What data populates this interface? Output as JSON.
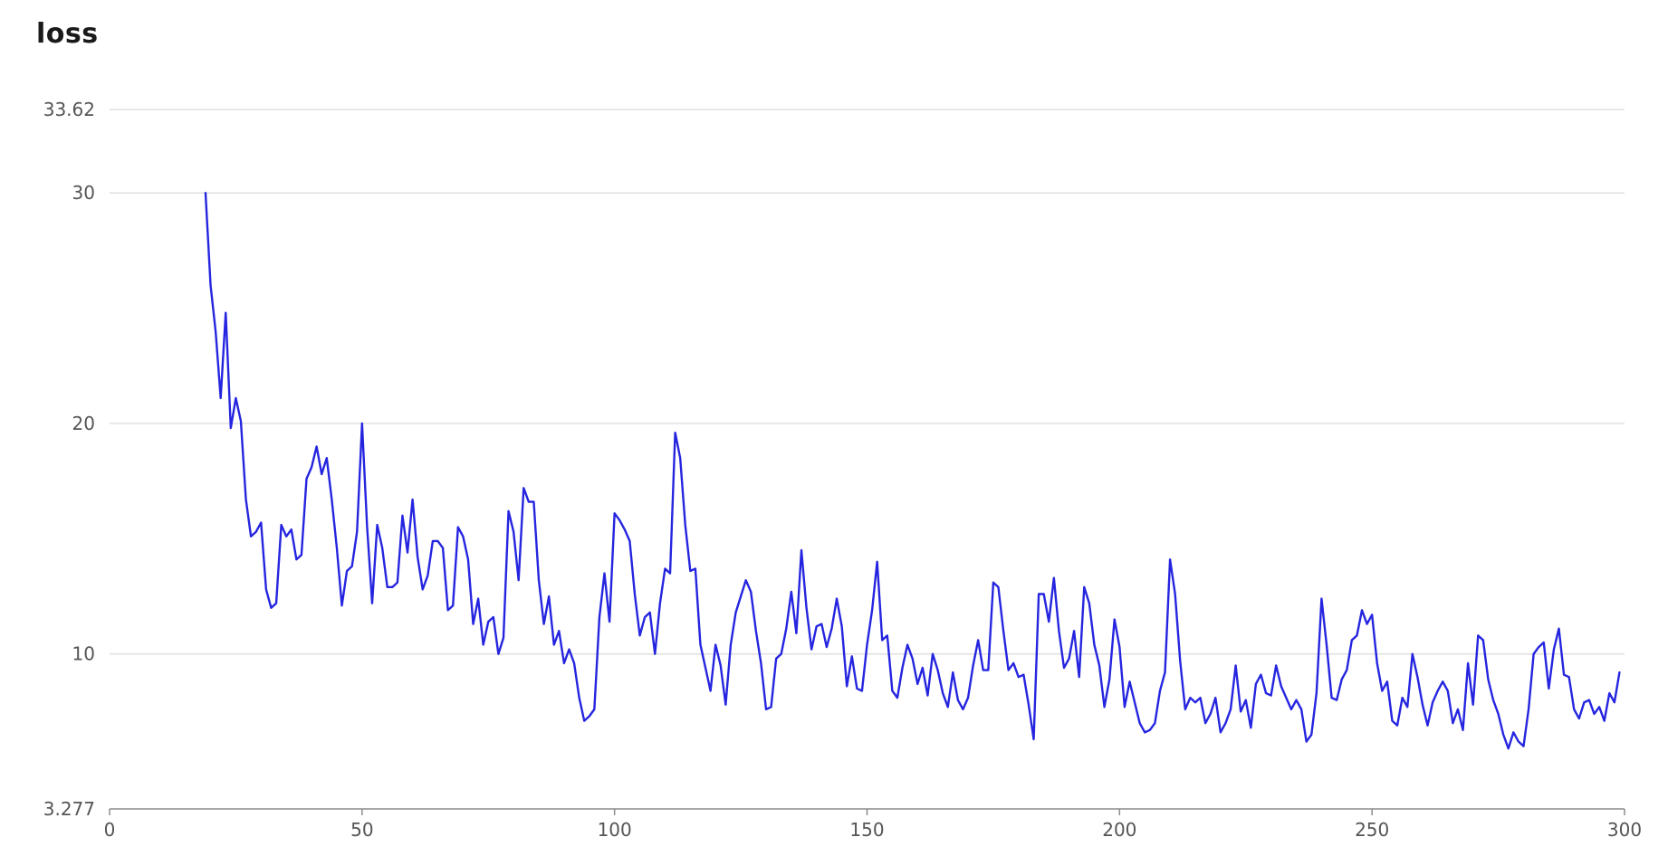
{
  "chart_data": {
    "type": "line",
    "title": "loss",
    "xlabel": "",
    "ylabel": "",
    "xlim": [
      0,
      300
    ],
    "ylim": [
      3.277,
      33.62
    ],
    "grid": true,
    "x_ticks": [
      {
        "value": 0,
        "label": "0"
      },
      {
        "value": 50,
        "label": "50"
      },
      {
        "value": 100,
        "label": "100"
      },
      {
        "value": 150,
        "label": "150"
      },
      {
        "value": 200,
        "label": "200"
      },
      {
        "value": 250,
        "label": "250"
      },
      {
        "value": 300,
        "label": "300"
      }
    ],
    "y_ticks": [
      {
        "value": 3.277,
        "label": "3.277"
      },
      {
        "value": 10,
        "label": "10"
      },
      {
        "value": 20,
        "label": "20"
      },
      {
        "value": 30,
        "label": "30"
      },
      {
        "value": 33.62,
        "label": "33.62"
      }
    ],
    "series": [
      {
        "color": "#2525e0",
        "x": [
          19,
          20,
          21,
          22,
          23,
          24,
          25,
          26,
          27,
          28,
          29,
          30,
          31,
          32,
          33,
          34,
          35,
          36,
          37,
          38,
          39,
          40,
          41,
          42,
          43,
          44,
          45,
          46,
          47,
          48,
          49,
          50,
          51,
          52,
          53,
          54,
          55,
          56,
          57,
          58,
          59,
          60,
          61,
          62,
          63,
          64,
          65,
          66,
          67,
          68,
          69,
          70,
          71,
          72,
          73,
          74,
          75,
          76,
          77,
          78,
          79,
          80,
          81,
          82,
          83,
          84,
          85,
          86,
          87,
          88,
          89,
          90,
          91,
          92,
          93,
          94,
          95,
          96,
          97,
          98,
          99,
          100,
          101,
          102,
          103,
          104,
          105,
          106,
          107,
          108,
          109,
          110,
          111,
          112,
          113,
          114,
          115,
          116,
          117,
          118,
          119,
          120,
          121,
          122,
          123,
          124,
          125,
          126,
          127,
          128,
          129,
          130,
          131,
          132,
          133,
          134,
          135,
          136,
          137,
          138,
          139,
          140,
          141,
          142,
          143,
          144,
          145,
          146,
          147,
          148,
          149,
          150,
          151,
          152,
          153,
          154,
          155,
          156,
          157,
          158,
          159,
          160,
          161,
          162,
          163,
          164,
          165,
          166,
          167,
          168,
          169,
          170,
          171,
          172,
          173,
          174,
          175,
          176,
          177,
          178,
          179,
          180,
          181,
          182,
          183,
          184,
          185,
          186,
          187,
          188,
          189,
          190,
          191,
          192,
          193,
          194,
          195,
          196,
          197,
          198,
          199,
          200,
          201,
          202,
          203,
          204,
          205,
          206,
          207,
          208,
          209,
          210,
          211,
          212,
          213,
          214,
          215,
          216,
          217,
          218,
          219,
          220,
          221,
          222,
          223,
          224,
          225,
          226,
          227,
          228,
          229,
          230,
          231,
          232,
          233,
          234,
          235,
          236,
          237,
          238,
          239,
          240,
          241,
          242,
          243,
          244,
          245,
          246,
          247,
          248,
          249,
          250,
          251,
          252,
          253,
          254,
          255,
          256,
          257,
          258,
          259,
          260,
          261,
          262,
          263,
          264,
          265,
          266,
          267,
          268,
          269,
          270,
          271,
          272,
          273,
          274,
          275,
          276,
          277,
          278,
          279,
          280,
          281,
          282,
          283,
          284,
          285,
          286,
          287,
          288,
          289,
          290,
          291,
          292,
          293,
          294,
          295,
          296,
          297,
          298,
          299
        ],
        "y": [
          30.0,
          26.0,
          24.0,
          21.1,
          24.8,
          19.8,
          21.1,
          20.1,
          16.7,
          15.1,
          15.3,
          15.7,
          12.8,
          12.0,
          12.2,
          15.6,
          15.1,
          15.4,
          14.1,
          14.3,
          17.6,
          18.1,
          19.0,
          17.8,
          18.5,
          16.7,
          14.6,
          12.1,
          13.6,
          13.8,
          15.3,
          20.0,
          15.5,
          12.2,
          15.6,
          14.6,
          12.9,
          12.9,
          13.1,
          16.0,
          14.4,
          16.7,
          14.2,
          12.8,
          13.4,
          14.9,
          14.9,
          14.6,
          11.9,
          12.1,
          15.5,
          15.1,
          14.1,
          11.3,
          12.4,
          10.4,
          11.4,
          11.6,
          10.0,
          10.7,
          16.2,
          15.3,
          13.2,
          17.2,
          16.6,
          16.6,
          13.2,
          11.3,
          12.5,
          10.4,
          11.0,
          9.6,
          10.2,
          9.6,
          8.1,
          7.1,
          7.3,
          7.6,
          11.6,
          13.5,
          11.4,
          16.1,
          15.8,
          15.4,
          14.9,
          12.6,
          10.8,
          11.6,
          11.8,
          10.0,
          12.2,
          13.7,
          13.5,
          19.6,
          18.5,
          15.6,
          13.6,
          13.7,
          10.4,
          9.4,
          8.4,
          10.4,
          9.5,
          7.8,
          10.4,
          11.8,
          12.5,
          13.2,
          12.7,
          11.0,
          9.6,
          7.6,
          7.7,
          9.8,
          10.0,
          11.1,
          12.7,
          10.9,
          14.5,
          12.0,
          10.2,
          11.2,
          11.3,
          10.3,
          11.1,
          12.4,
          11.2,
          8.6,
          9.9,
          8.5,
          8.4,
          10.4,
          11.9,
          14.0,
          10.6,
          10.8,
          8.4,
          8.1,
          9.4,
          10.4,
          9.8,
          8.7,
          9.4,
          8.2,
          10.0,
          9.3,
          8.3,
          7.7,
          9.2,
          8.0,
          7.6,
          8.1,
          9.5,
          10.6,
          9.3,
          9.3,
          13.1,
          12.9,
          11.0,
          9.3,
          9.6,
          9.0,
          9.1,
          7.8,
          6.3,
          12.6,
          12.6,
          11.4,
          13.3,
          11.0,
          9.4,
          9.8,
          11.0,
          9.0,
          12.9,
          12.2,
          10.4,
          9.5,
          7.7,
          8.9,
          11.5,
          10.3,
          7.7,
          8.8,
          7.9,
          7.0,
          6.6,
          6.7,
          7.0,
          8.4,
          9.2,
          14.1,
          12.6,
          9.7,
          7.6,
          8.1,
          7.9,
          8.1,
          7.0,
          7.4,
          8.1,
          6.6,
          7.0,
          7.6,
          9.5,
          7.5,
          8.0,
          6.8,
          8.7,
          9.1,
          8.3,
          8.2,
          9.5,
          8.6,
          8.1,
          7.6,
          8.0,
          7.6,
          6.2,
          6.5,
          8.3,
          12.4,
          10.4,
          8.1,
          8.0,
          8.9,
          9.3,
          10.6,
          10.8,
          11.9,
          11.3,
          11.7,
          9.6,
          8.4,
          8.8,
          7.1,
          6.9,
          8.1,
          7.7,
          10.0,
          9.0,
          7.8,
          6.9,
          7.9,
          8.4,
          8.8,
          8.4,
          7.0,
          7.6,
          6.7,
          9.6,
          7.8,
          10.8,
          10.6,
          8.9,
          8.0,
          7.4,
          6.5,
          5.9,
          6.6,
          6.2,
          6.0,
          7.6,
          10.0,
          10.3,
          10.5,
          8.5,
          10.2,
          11.1,
          9.1,
          9.0,
          7.6,
          7.2,
          7.9,
          8.0,
          7.4,
          7.7,
          7.1,
          8.3,
          7.9,
          9.2
        ]
      }
    ]
  }
}
